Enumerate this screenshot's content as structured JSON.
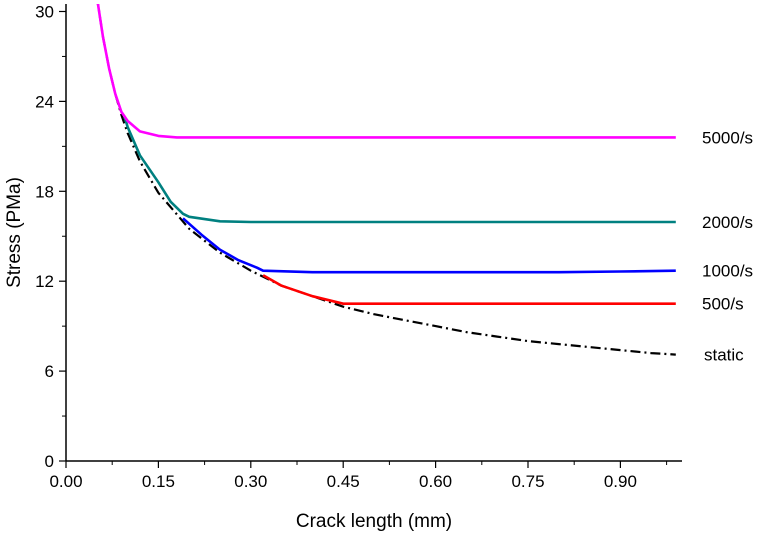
{
  "chart_data": {
    "type": "line",
    "title": "",
    "xlabel": "Crack length (mm)",
    "ylabel": "Stress (PMa)",
    "xlim": [
      0.0,
      1.0
    ],
    "ylim": [
      0,
      30.5
    ],
    "x_ticks": [
      "0.00",
      "0.15",
      "0.30",
      "0.45",
      "0.60",
      "0.75",
      "0.90"
    ],
    "y_ticks": [
      "0",
      "6",
      "12",
      "18",
      "24",
      "30"
    ],
    "grid": false,
    "series": [
      {
        "name": "static",
        "color": "#000000",
        "style": "dash-dot",
        "x": [
          0.05,
          0.06,
          0.07,
          0.08,
          0.09,
          0.1,
          0.12,
          0.15,
          0.2,
          0.25,
          0.3,
          0.35,
          0.4,
          0.45,
          0.5,
          0.55,
          0.6,
          0.65,
          0.7,
          0.75,
          0.8,
          0.85,
          0.9,
          0.95,
          0.99
        ],
        "y": [
          31.0,
          28.3,
          26.2,
          24.5,
          23.1,
          21.9,
          20.0,
          17.9,
          15.5,
          13.9,
          12.7,
          11.7,
          11.0,
          10.3,
          9.8,
          9.4,
          9.0,
          8.6,
          8.3,
          8.0,
          7.8,
          7.6,
          7.4,
          7.2,
          7.1
        ]
      },
      {
        "name": "500/s",
        "color": "#ff0000",
        "style": "solid",
        "x": [
          0.32,
          0.35,
          0.4,
          0.45,
          0.47,
          0.5,
          0.6,
          0.7,
          0.8,
          0.9,
          0.99
        ],
        "y": [
          12.4,
          11.7,
          11.0,
          10.5,
          10.5,
          10.5,
          10.5,
          10.5,
          10.5,
          10.5,
          10.5
        ]
      },
      {
        "name": "1000/s",
        "color": "#0000ff",
        "style": "solid",
        "x": [
          0.19,
          0.22,
          0.25,
          0.28,
          0.31,
          0.32,
          0.4,
          0.5,
          0.6,
          0.7,
          0.8,
          0.9,
          0.99
        ],
        "y": [
          16.2,
          15.1,
          14.1,
          13.4,
          12.9,
          12.7,
          12.6,
          12.6,
          12.6,
          12.6,
          12.6,
          12.65,
          12.7
        ]
      },
      {
        "name": "2000/s",
        "color": "#008080",
        "style": "solid",
        "x": [
          0.095,
          0.1,
          0.12,
          0.15,
          0.17,
          0.19,
          0.2,
          0.25,
          0.3,
          0.4,
          0.5,
          0.6,
          0.7,
          0.8,
          0.9,
          0.99
        ],
        "y": [
          23.0,
          22.3,
          20.4,
          18.6,
          17.3,
          16.5,
          16.3,
          16.0,
          15.95,
          15.95,
          15.95,
          15.95,
          15.95,
          15.95,
          15.95,
          15.95
        ]
      },
      {
        "name": "5000/s",
        "color": "#ff00ff",
        "style": "solid",
        "x": [
          0.05,
          0.06,
          0.07,
          0.08,
          0.09,
          0.095,
          0.1,
          0.12,
          0.15,
          0.18,
          0.2,
          0.3,
          0.4,
          0.5,
          0.6,
          0.7,
          0.8,
          0.9,
          0.99
        ],
        "y": [
          31.0,
          28.3,
          26.2,
          24.5,
          23.3,
          23.0,
          22.7,
          22.0,
          21.7,
          21.6,
          21.6,
          21.6,
          21.6,
          21.6,
          21.6,
          21.6,
          21.6,
          21.6,
          21.6
        ]
      }
    ]
  }
}
